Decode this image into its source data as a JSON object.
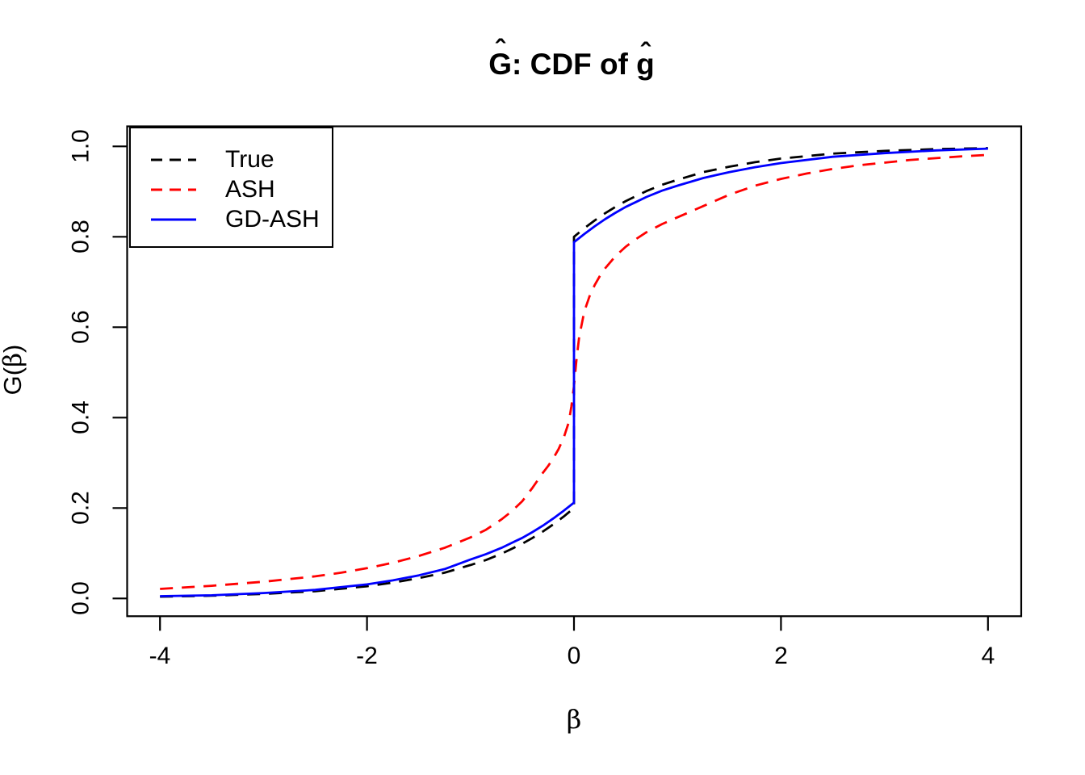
{
  "title": {
    "g1": "G",
    "hat": "ˆ",
    "mid": ": CDF of ",
    "g2": "g"
  },
  "x_axis_title": {
    "beta": "β"
  },
  "y_axis_title": {
    "g": "G",
    "hat": "ˆ",
    "open": "(",
    "beta": "β",
    "close": ")"
  },
  "chart_data": {
    "type": "line",
    "title": "Ĝ: CDF of ĝ",
    "xlabel": "β",
    "ylabel": "Ĝ(β)",
    "xlim": [
      -4,
      4
    ],
    "ylim": [
      0,
      1
    ],
    "grid": false,
    "legend_position": "topleft",
    "x_ticks": [
      -4,
      -2,
      0,
      2,
      4
    ],
    "x_tick_labels": [
      "-4",
      "-2",
      "0",
      "2",
      "4"
    ],
    "y_ticks": [
      0.0,
      0.2,
      0.4,
      0.6,
      0.8,
      1.0
    ],
    "y_tick_labels": [
      "0.0",
      "0.2",
      "0.4",
      "0.6",
      "0.8",
      "1.0"
    ],
    "note": "True and GD-ASH have a point-mass jump at beta=0; ASH is continuous",
    "series": [
      {
        "name": "True",
        "color": "#000000",
        "style": "dashed",
        "points": [
          [
            -4,
            0.004
          ],
          [
            -3.5,
            0.006
          ],
          [
            -3,
            0.01
          ],
          [
            -2.5,
            0.016
          ],
          [
            -2,
            0.027
          ],
          [
            -1.75,
            0.035
          ],
          [
            -1.5,
            0.045
          ],
          [
            -1.25,
            0.057
          ],
          [
            -1,
            0.074
          ],
          [
            -0.85,
            0.085
          ],
          [
            -0.7,
            0.099
          ],
          [
            -0.6,
            0.11
          ],
          [
            -0.5,
            0.121
          ],
          [
            -0.4,
            0.134
          ],
          [
            -0.3,
            0.148
          ],
          [
            -0.2,
            0.164
          ],
          [
            -0.1,
            0.181
          ],
          [
            0,
            0.2
          ],
          [
            0,
            0.8
          ],
          [
            0.1,
            0.819
          ],
          [
            0.2,
            0.836
          ],
          [
            0.3,
            0.852
          ],
          [
            0.4,
            0.866
          ],
          [
            0.5,
            0.879
          ],
          [
            0.6,
            0.89
          ],
          [
            0.7,
            0.901
          ],
          [
            0.85,
            0.915
          ],
          [
            1,
            0.926
          ],
          [
            1.25,
            0.943
          ],
          [
            1.5,
            0.955
          ],
          [
            1.75,
            0.965
          ],
          [
            2,
            0.973
          ],
          [
            2.5,
            0.984
          ],
          [
            3,
            0.99
          ],
          [
            3.5,
            0.994
          ],
          [
            4,
            0.996
          ]
        ]
      },
      {
        "name": "ASH",
        "color": "#FF0000",
        "style": "dashed",
        "points": [
          [
            -4,
            0.021
          ],
          [
            -3.5,
            0.028
          ],
          [
            -3,
            0.037
          ],
          [
            -2.5,
            0.049
          ],
          [
            -2.25,
            0.057
          ],
          [
            -2,
            0.067
          ],
          [
            -1.75,
            0.079
          ],
          [
            -1.5,
            0.094
          ],
          [
            -1.25,
            0.112
          ],
          [
            -1,
            0.135
          ],
          [
            -0.85,
            0.152
          ],
          [
            -0.7,
            0.175
          ],
          [
            -0.6,
            0.193
          ],
          [
            -0.5,
            0.215
          ],
          [
            -0.4,
            0.245
          ],
          [
            -0.3,
            0.278
          ],
          [
            -0.25,
            0.293
          ],
          [
            -0.2,
            0.31
          ],
          [
            -0.15,
            0.33
          ],
          [
            -0.1,
            0.355
          ],
          [
            -0.05,
            0.39
          ],
          [
            -0.025,
            0.425
          ],
          [
            0,
            0.47
          ],
          [
            0.025,
            0.53
          ],
          [
            0.05,
            0.578
          ],
          [
            0.1,
            0.635
          ],
          [
            0.15,
            0.668
          ],
          [
            0.2,
            0.693
          ],
          [
            0.25,
            0.713
          ],
          [
            0.3,
            0.73
          ],
          [
            0.4,
            0.757
          ],
          [
            0.5,
            0.778
          ],
          [
            0.6,
            0.795
          ],
          [
            0.7,
            0.81
          ],
          [
            0.85,
            0.828
          ],
          [
            1,
            0.843
          ],
          [
            1.25,
            0.868
          ],
          [
            1.5,
            0.893
          ],
          [
            1.75,
            0.913
          ],
          [
            2,
            0.928
          ],
          [
            2.25,
            0.94
          ],
          [
            2.5,
            0.95
          ],
          [
            2.75,
            0.958
          ],
          [
            3,
            0.964
          ],
          [
            3.25,
            0.97
          ],
          [
            3.5,
            0.974
          ],
          [
            3.75,
            0.978
          ],
          [
            4,
            0.981
          ]
        ]
      },
      {
        "name": "GD-ASH",
        "color": "#0000FF",
        "style": "solid",
        "points": [
          [
            -4,
            0.005
          ],
          [
            -3.5,
            0.007
          ],
          [
            -3,
            0.012
          ],
          [
            -2.5,
            0.019
          ],
          [
            -2,
            0.031
          ],
          [
            -1.75,
            0.04
          ],
          [
            -1.5,
            0.051
          ],
          [
            -1.25,
            0.065
          ],
          [
            -1,
            0.086
          ],
          [
            -0.85,
            0.098
          ],
          [
            -0.7,
            0.112
          ],
          [
            -0.6,
            0.123
          ],
          [
            -0.5,
            0.134
          ],
          [
            -0.4,
            0.147
          ],
          [
            -0.3,
            0.161
          ],
          [
            -0.2,
            0.177
          ],
          [
            -0.1,
            0.194
          ],
          [
            0,
            0.212
          ],
          [
            0,
            0.788
          ],
          [
            0.1,
            0.806
          ],
          [
            0.2,
            0.823
          ],
          [
            0.3,
            0.839
          ],
          [
            0.4,
            0.853
          ],
          [
            0.5,
            0.866
          ],
          [
            0.6,
            0.877
          ],
          [
            0.7,
            0.888
          ],
          [
            0.85,
            0.902
          ],
          [
            1,
            0.913
          ],
          [
            1.25,
            0.93
          ],
          [
            1.5,
            0.943
          ],
          [
            1.75,
            0.954
          ],
          [
            2,
            0.963
          ],
          [
            2.5,
            0.977
          ],
          [
            3,
            0.985
          ],
          [
            3.5,
            0.991
          ],
          [
            4,
            0.995
          ]
        ]
      }
    ]
  }
}
